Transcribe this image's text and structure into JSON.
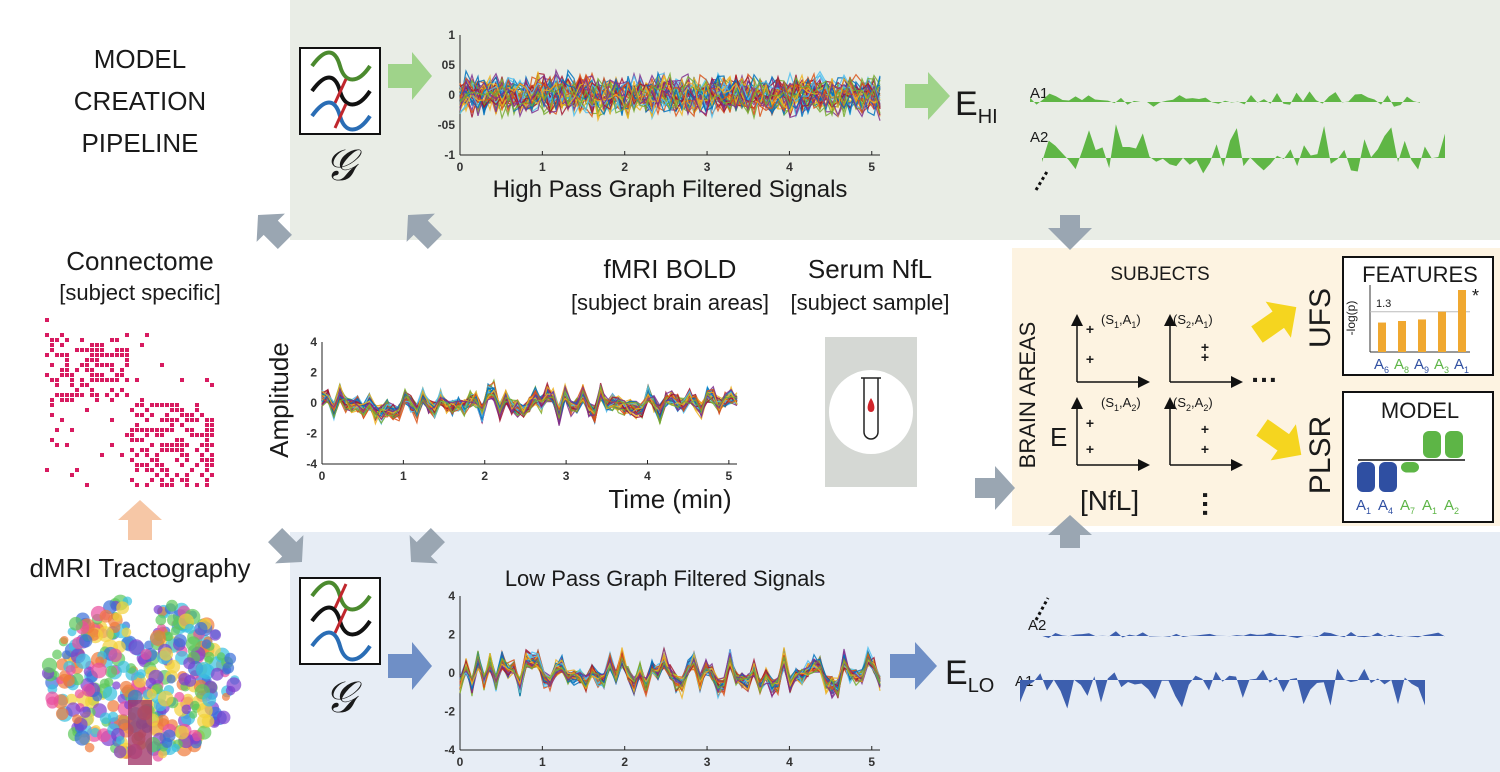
{
  "pipeline_title": [
    "MODEL",
    "CREATION",
    "PIPELINE"
  ],
  "connectome": {
    "title": "Connectome",
    "subtitle": "[subject specific]"
  },
  "tractography": {
    "title": "dMRI Tractography"
  },
  "graph_symbol": "𝒢",
  "high_pass": {
    "title": "High Pass Graph Filtered Signals",
    "yticks": [
      "1",
      "05",
      "0",
      "-05",
      "-1"
    ],
    "xticks": [
      "0",
      "1",
      "2",
      "3",
      "4",
      "5"
    ],
    "energy": "E",
    "energy_sub": "HI",
    "areas": [
      "A1",
      "A2"
    ]
  },
  "low_pass": {
    "title": "Low Pass Graph Filtered Signals",
    "yticks": [
      "4",
      "2",
      "0",
      "-2",
      "-4"
    ],
    "xticks": [
      "0",
      "1",
      "2",
      "3",
      "4",
      "5"
    ],
    "energy": "E",
    "energy_sub": "LO",
    "areas": [
      "A2",
      "A1"
    ]
  },
  "fmri": {
    "title": "fMRI BOLD",
    "subtitle": "[subject brain areas]",
    "ylabel": "Amplitude",
    "xlabel": "Time (min)",
    "yticks": [
      "4",
      "2",
      "0",
      "-2",
      "-4"
    ],
    "xticks": [
      "0",
      "1",
      "2",
      "3",
      "4",
      "5"
    ]
  },
  "serum": {
    "title": "Serum NfL",
    "subtitle": "[subject sample]"
  },
  "subjects_panel": {
    "title": "SUBJECTS",
    "rows_label": "BRAIN AREAS",
    "ylabel": "E",
    "xlabel": "[NfL]",
    "panels": [
      {
        "s": "1",
        "a": "1"
      },
      {
        "s": "2",
        "a": "1"
      },
      {
        "s": "1",
        "a": "2"
      },
      {
        "s": "2",
        "a": "2"
      }
    ]
  },
  "ufs": {
    "label": "UFS",
    "title": "FEATURES",
    "ylabel": "-log(p)",
    "threshold": "1.3",
    "star": "*",
    "bars": [
      {
        "area": "6",
        "value": 0.95,
        "color": "#2f4fa2"
      },
      {
        "area": "8",
        "value": 1.0,
        "color": "#5db546"
      },
      {
        "area": "9",
        "value": 1.05,
        "color": "#2f4fa2"
      },
      {
        "area": "3",
        "value": 1.3,
        "color": "#5db546"
      },
      {
        "area": "1",
        "value": 2.0,
        "color": "#2f4fa2"
      }
    ]
  },
  "plsr": {
    "label": "PLSR",
    "title": "MODEL",
    "coefs": [
      {
        "area": "1",
        "value": -1,
        "color": "#2f4fa2"
      },
      {
        "area": "4",
        "value": -1,
        "color": "#2f4fa2"
      },
      {
        "area": "7",
        "value": -0.35,
        "color": "#5db546"
      },
      {
        "area": "1",
        "value": 0.9,
        "color": "#5db546"
      },
      {
        "area": "2",
        "value": 0.9,
        "color": "#5db546"
      }
    ]
  },
  "colors": {
    "top_band": "#e9ede6",
    "bottom_band": "#e7edf5",
    "subjects_box": "#fdf3e1",
    "high_pass": "#5fb645",
    "low_pass": "#3d5fae",
    "arrow_gray": "#9aa6b2",
    "arrow_green": "#9fd38a",
    "arrow_blue": "#6f8fc6",
    "arrow_yellow": "#f5d51f",
    "arrow_orange": "#f6c7a6",
    "matrix": "#d81b60",
    "bars": "#f0a830"
  }
}
